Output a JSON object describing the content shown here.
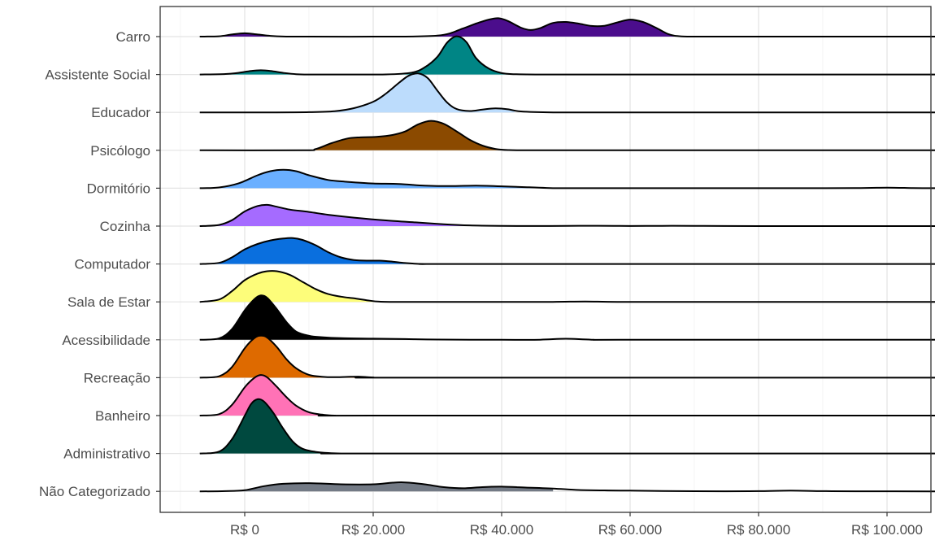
{
  "chart_data": {
    "type": "ridgeline",
    "title": "",
    "xlabel": "",
    "ylabel": "",
    "xlim": [
      -13000,
      108000
    ],
    "grid": true,
    "legend": "none",
    "x_ticks": [
      0,
      20000,
      40000,
      60000,
      80000,
      100000
    ],
    "x_tick_labels": [
      "R$ 0",
      "R$ 20.000",
      "R$ 40.000",
      "R$ 60.000",
      "R$ 80.000",
      "R$ 100.000"
    ],
    "categories": [
      "Carro",
      "Assistente Social",
      "Educador",
      "Psicólogo",
      "Dormitório",
      "Cozinha",
      "Computador",
      "Sala de Estar",
      "Acessibilidade",
      "Recreação",
      "Banheiro",
      "Administrativo",
      "Não Categorizado"
    ],
    "series": [
      {
        "category": "Carro",
        "color": "#4b0d8c",
        "fill_range": [
          -7000,
          67000
        ],
        "line_range": [
          -7000,
          108000
        ],
        "x": [
          -7000,
          -4000,
          -2000,
          0,
          2000,
          4000,
          6000,
          10000,
          20000,
          30000,
          34000,
          36000,
          38000,
          39500,
          41000,
          43000,
          44500,
          46000,
          48000,
          50000,
          52000,
          54000,
          56000,
          58000,
          60000,
          62000,
          64000,
          66000,
          68000,
          72000,
          80000,
          100000,
          108000
        ],
        "density": [
          0,
          0.015,
          0.09,
          0.14,
          0.09,
          0.03,
          0.005,
          0,
          0,
          0.04,
          0.35,
          0.55,
          0.72,
          0.78,
          0.66,
          0.38,
          0.28,
          0.36,
          0.58,
          0.62,
          0.55,
          0.45,
          0.46,
          0.6,
          0.72,
          0.62,
          0.38,
          0.1,
          0.01,
          0,
          0,
          0,
          0
        ]
      },
      {
        "category": "Assistente Social",
        "color": "#008585",
        "fill_range": [
          -7000,
          42000
        ],
        "line_range": [
          -7000,
          108000
        ],
        "x": [
          -7000,
          -3000,
          -1000,
          1000,
          2500,
          4000,
          6000,
          8000,
          10000,
          15000,
          22000,
          26000,
          28000,
          30000,
          31500,
          33000,
          34500,
          36000,
          38000,
          40000,
          42000,
          46000,
          55000,
          70000,
          108000
        ],
        "density": [
          0,
          0.02,
          0.07,
          0.15,
          0.18,
          0.15,
          0.07,
          0.015,
          0,
          0,
          0.005,
          0.08,
          0.3,
          0.75,
          1.35,
          1.62,
          1.38,
          0.7,
          0.25,
          0.06,
          0.015,
          0,
          0,
          0,
          0
        ]
      },
      {
        "category": "Educador",
        "color": "#bcdcfc",
        "fill_range": [
          -7000,
          42000
        ],
        "line_range": [
          -7000,
          108000
        ],
        "x": [
          -7000,
          5000,
          10000,
          14000,
          17000,
          20000,
          22000,
          24000,
          25500,
          27000,
          28500,
          30000,
          31500,
          33000,
          35000,
          37000,
          39000,
          41000,
          43000,
          48000,
          60000,
          108000
        ],
        "density": [
          0,
          0,
          0.01,
          0.05,
          0.18,
          0.45,
          0.8,
          1.25,
          1.55,
          1.65,
          1.45,
          0.92,
          0.42,
          0.14,
          0.06,
          0.12,
          0.17,
          0.13,
          0.04,
          0,
          0,
          0
        ]
      },
      {
        "category": "Psicólogo",
        "color": "#8b4a00",
        "fill_range": [
          -7000,
          40000
        ],
        "line_range": [
          -7000,
          108000
        ],
        "x": [
          -7000,
          9000,
          11000,
          13500,
          16000,
          18000,
          20500,
          23000,
          25000,
          27000,
          29000,
          31000,
          33000,
          35000,
          37000,
          39000,
          41000,
          45000,
          60000,
          108000
        ],
        "density": [
          0,
          0,
          0.05,
          0.3,
          0.5,
          0.55,
          0.57,
          0.65,
          0.8,
          1.1,
          1.25,
          1.12,
          0.8,
          0.45,
          0.2,
          0.06,
          0.01,
          0,
          0,
          0
        ]
      },
      {
        "category": "Dormitório",
        "color": "#6aafff",
        "fill_range": [
          -7000,
          47000
        ],
        "line_range": [
          -7000,
          108000
        ],
        "x": [
          -7000,
          -4000,
          -1000,
          2000,
          4000,
          6000,
          8000,
          10000,
          13000,
          16000,
          20000,
          24000,
          28000,
          32000,
          36000,
          40000,
          44000,
          47000,
          50000,
          60000,
          80000,
          95000,
          100000,
          104000,
          108000
        ],
        "density": [
          0,
          0.03,
          0.2,
          0.55,
          0.72,
          0.78,
          0.72,
          0.55,
          0.35,
          0.27,
          0.2,
          0.18,
          0.11,
          0.09,
          0.11,
          0.08,
          0.04,
          0.01,
          0,
          0,
          0,
          0.005,
          0.025,
          0.005,
          0
        ]
      },
      {
        "category": "Cozinha",
        "color": "#a56bff",
        "fill_range": [
          -7000,
          35000
        ],
        "line_range": [
          -7000,
          108000
        ],
        "x": [
          -7000,
          -4000,
          -2000,
          0,
          2000,
          3500,
          5000,
          7000,
          10000,
          13000,
          17000,
          22000,
          27000,
          31000,
          35000,
          40000,
          45000,
          50000,
          55000,
          60000,
          65000,
          70000,
          80000,
          108000
        ],
        "density": [
          0,
          0.05,
          0.25,
          0.62,
          0.85,
          0.9,
          0.82,
          0.7,
          0.6,
          0.48,
          0.36,
          0.24,
          0.15,
          0.08,
          0.03,
          0.01,
          0.005,
          0.01,
          0.015,
          0.005,
          0.01,
          0.012,
          0,
          0
        ]
      },
      {
        "category": "Computador",
        "color": "#0a6fde",
        "fill_range": [
          -7000,
          27000
        ],
        "line_range": [
          -7000,
          108000
        ],
        "x": [
          -7000,
          -4000,
          -2000,
          0,
          2000,
          4000,
          6000,
          7500,
          9000,
          11000,
          13000,
          15000,
          17000,
          19000,
          21000,
          23000,
          25000,
          28000,
          35000,
          108000
        ],
        "density": [
          0,
          0.05,
          0.28,
          0.62,
          0.85,
          1.0,
          1.08,
          1.1,
          1.02,
          0.8,
          0.5,
          0.28,
          0.17,
          0.14,
          0.14,
          0.1,
          0.04,
          0,
          0,
          0
        ]
      },
      {
        "category": "Sala de Estar",
        "color": "#fdfd7a",
        "fill_range": [
          -7000,
          21000
        ],
        "line_range": [
          -7000,
          108000
        ],
        "x": [
          -7000,
          -4000,
          -2000,
          0,
          2000,
          3500,
          5000,
          7000,
          9000,
          11000,
          13000,
          15000,
          17000,
          19000,
          21000,
          25000,
          40000,
          48000,
          53000,
          58000,
          70000,
          108000
        ],
        "density": [
          0,
          0.1,
          0.45,
          0.92,
          1.2,
          1.3,
          1.3,
          1.15,
          0.85,
          0.55,
          0.33,
          0.22,
          0.15,
          0.07,
          0.01,
          0,
          0,
          0,
          0.018,
          0,
          0,
          0
        ]
      },
      {
        "category": "Acessibilidade",
        "color": "#000000",
        "fill_range": [
          -7000,
          27000
        ],
        "line_range": [
          -7000,
          108000
        ],
        "x": [
          -7000,
          -4000,
          -2000,
          0,
          1500,
          2500,
          3500,
          5000,
          6500,
          8000,
          10000,
          12000,
          15000,
          20000,
          25000,
          30000,
          40000,
          46000,
          50000,
          54000,
          60000,
          108000
        ],
        "density": [
          0,
          0.06,
          0.45,
          1.25,
          1.72,
          1.88,
          1.78,
          1.3,
          0.75,
          0.35,
          0.17,
          0.11,
          0.07,
          0.05,
          0.03,
          0.01,
          0,
          0.005,
          0.045,
          0.005,
          0,
          0
        ]
      },
      {
        "category": "Recreação",
        "color": "#de6a00",
        "fill_range": [
          -7000,
          20000
        ],
        "line_range": [
          -7000,
          108000
        ],
        "x": [
          -7000,
          -4000,
          -2000,
          0,
          1500,
          2500,
          3500,
          5000,
          6500,
          8000,
          10000,
          12000,
          14000,
          16000,
          18000,
          20000,
          25000,
          108000
        ],
        "density": [
          0,
          0.06,
          0.45,
          1.25,
          1.68,
          1.78,
          1.7,
          1.3,
          0.78,
          0.4,
          0.12,
          0.04,
          0.02,
          0.035,
          0.04,
          0.01,
          0,
          0
        ]
      },
      {
        "category": "Banheiro",
        "color": "#ff72b6",
        "fill_range": [
          -7000,
          14000
        ],
        "line_range": [
          -7000,
          108000
        ],
        "x": [
          -7000,
          -4000,
          -2000,
          0,
          1500,
          2500,
          3500,
          5000,
          6500,
          8000,
          10000,
          12000,
          14000,
          20000,
          108000
        ],
        "density": [
          0,
          0.06,
          0.45,
          1.2,
          1.6,
          1.72,
          1.62,
          1.22,
          0.78,
          0.42,
          0.14,
          0.04,
          0,
          0,
          0
        ]
      },
      {
        "category": "Administrativo",
        "color": "#00493f",
        "fill_range": [
          -7000,
          14000
        ],
        "line_range": [
          -7000,
          108000
        ],
        "x": [
          -7000,
          -4000,
          -2000,
          0,
          1000,
          2000,
          3000,
          4500,
          6000,
          7500,
          9000,
          11000,
          13000,
          15000,
          20000,
          108000
        ],
        "density": [
          0,
          0.08,
          0.6,
          1.6,
          2.1,
          2.3,
          2.2,
          1.7,
          1.05,
          0.5,
          0.2,
          0.07,
          0.02,
          0,
          0,
          0
        ]
      },
      {
        "category": "Não Categorizado",
        "color": "#737a85",
        "fill_range": [
          -7000,
          48000
        ],
        "line_range": [
          -7000,
          108000
        ],
        "x": [
          -7000,
          -3000,
          0,
          3000,
          6000,
          10000,
          15000,
          20000,
          23000,
          25000,
          28000,
          31000,
          34000,
          37000,
          40000,
          44000,
          48000,
          52000,
          56000,
          60000,
          65000,
          75000,
          80000,
          85000,
          90000,
          95000,
          108000
        ],
        "density": [
          0,
          0.01,
          0.05,
          0.22,
          0.32,
          0.35,
          0.3,
          0.3,
          0.37,
          0.38,
          0.3,
          0.18,
          0.13,
          0.18,
          0.2,
          0.16,
          0.12,
          0.06,
          0.04,
          0.03,
          0.015,
          0.005,
          0.01,
          0.03,
          0.01,
          0.005,
          0
        ]
      }
    ]
  }
}
